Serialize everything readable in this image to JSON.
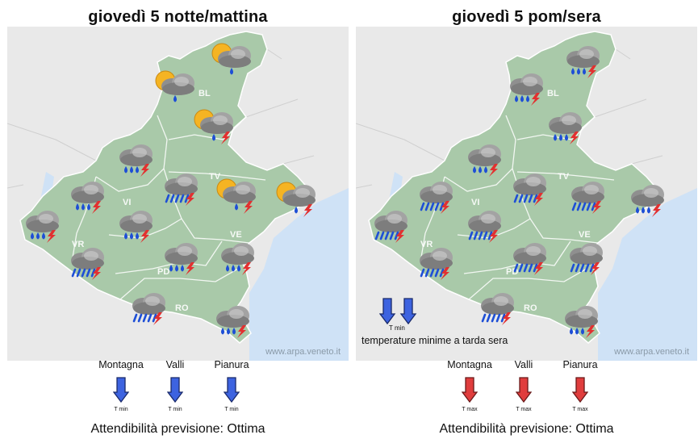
{
  "left": {
    "title": "giovedì  5 notte/mattina",
    "credit": "www.arpa.veneto.it",
    "provinces": [
      "BL",
      "TV",
      "VI",
      "VR",
      "PD",
      "VE",
      "RO"
    ],
    "icons": [
      "partly-cloudy-drizzle",
      "partly-cloudy-drizzle",
      "partly-cloudy-drizzle-thunder",
      "drizzle-thunder",
      "drizzle-thunder",
      "drizzle-thunder",
      "partly-cloudy-drizzle-thunder",
      "partly-cloudy-drizzle-thunder",
      "rain-thunder",
      "drizzle-thunder",
      "rain-thunder",
      "drizzle-thunder",
      "drizzle-thunder",
      "rain-thunder",
      "drizzle-thunder"
    ],
    "temps": [
      {
        "label": "Montagna",
        "arrow": "T min",
        "color": "#3d63e0"
      },
      {
        "label": "Valli",
        "arrow": "T min",
        "color": "#3d63e0"
      },
      {
        "label": "Pianura",
        "arrow": "T min",
        "color": "#3d63e0"
      }
    ],
    "reliability": "Attendibilità previsione: Ottima"
  },
  "right": {
    "title": "giovedì  5 pom/sera",
    "credit": "www.arpa.veneto.it",
    "provinces": [
      "BL",
      "TV",
      "VI",
      "VR",
      "PD",
      "VE",
      "RO"
    ],
    "icons": [
      "drizzle-thunder",
      "drizzle-thunder",
      "drizzle-thunder",
      "drizzle-thunder",
      "rain-thunder",
      "rain-thunder",
      "drizzle-thunder",
      "rain-thunder",
      "rain-thunder",
      "rain-thunder",
      "rain-thunder",
      "rain-thunder",
      "rain-thunder",
      "rain-thunder",
      "drizzle-thunder"
    ],
    "note_arrow_label": "T min",
    "note": "temperature minime a tarda sera",
    "temps": [
      {
        "label": "Montagna",
        "arrow": "T max",
        "color": "#e03d3d"
      },
      {
        "label": "Valli",
        "arrow": "T max",
        "color": "#e03d3d"
      },
      {
        "label": "Pianura",
        "arrow": "T max",
        "color": "#e03d3d"
      }
    ],
    "reliability": "Attendibilità previsione: Ottima"
  },
  "colors": {
    "sea": "#cfe2f6",
    "land": "#a9c9a9",
    "outside": "#e9e9e9",
    "border": "#ffffff"
  }
}
